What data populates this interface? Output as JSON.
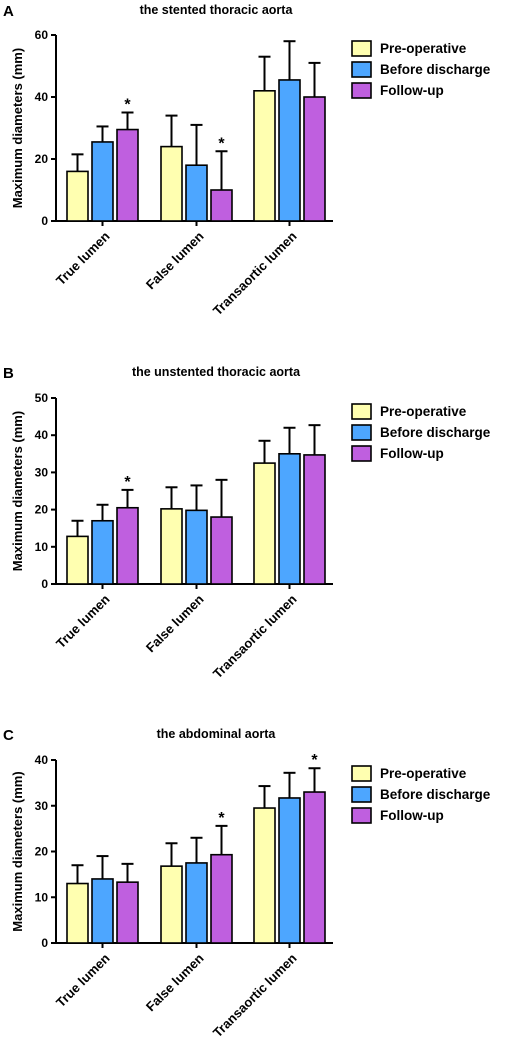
{
  "colors": {
    "pre_operative": "#ffffb0",
    "before_discharge": "#4da6ff",
    "follow_up": "#bf5fdf",
    "stroke": "#000000"
  },
  "chart_data": [
    {
      "panel": "A",
      "type": "bar",
      "title": "the stented thoracic aorta",
      "xlabel": "",
      "ylabel": "Maximum diameters (mm)",
      "ylim": [
        0,
        60
      ],
      "yticks": [
        0,
        20,
        40,
        60
      ],
      "grid": false,
      "legend_position": "top-right",
      "categories": [
        "True lumen",
        "False lumen",
        "Transaortic lumen"
      ],
      "series": [
        {
          "name": "Pre-operative",
          "color_key": "pre_operative",
          "values": [
            16,
            24,
            42
          ],
          "errors": [
            5.5,
            10,
            11
          ],
          "significant": [
            false,
            false,
            false
          ]
        },
        {
          "name": "Before discharge",
          "color_key": "before_discharge",
          "values": [
            25.5,
            18,
            45.5
          ],
          "errors": [
            5,
            13,
            12.5
          ],
          "significant": [
            false,
            false,
            false
          ]
        },
        {
          "name": "Follow-up",
          "color_key": "follow_up",
          "values": [
            29.5,
            10,
            40
          ],
          "errors": [
            5.5,
            12.5,
            11
          ],
          "significant": [
            true,
            true,
            false
          ]
        }
      ],
      "annotation": "*"
    },
    {
      "panel": "B",
      "type": "bar",
      "title": "the unstented thoracic aorta",
      "xlabel": "",
      "ylabel": "Maximum diameters (mm)",
      "ylim": [
        0,
        50
      ],
      "yticks": [
        0,
        10,
        20,
        30,
        40,
        50
      ],
      "grid": false,
      "legend_position": "top-right",
      "categories": [
        "True lumen",
        "False lumen",
        "Transaortic lumen"
      ],
      "series": [
        {
          "name": "Pre-operative",
          "color_key": "pre_operative",
          "values": [
            12.8,
            20.2,
            32.5
          ],
          "errors": [
            4.2,
            5.8,
            6
          ],
          "significant": [
            false,
            false,
            false
          ]
        },
        {
          "name": "Before discharge",
          "color_key": "before_discharge",
          "values": [
            17,
            19.8,
            35
          ],
          "errors": [
            4.3,
            6.7,
            7
          ],
          "significant": [
            false,
            false,
            false
          ]
        },
        {
          "name": "Follow-up",
          "color_key": "follow_up",
          "values": [
            20.5,
            18,
            34.7
          ],
          "errors": [
            4.8,
            10,
            8
          ],
          "significant": [
            true,
            false,
            false
          ]
        }
      ],
      "annotation": "*"
    },
    {
      "panel": "C",
      "type": "bar",
      "title": "the abdominal aorta",
      "xlabel": "",
      "ylabel": "Maximum diameters (mm)",
      "ylim": [
        0,
        40
      ],
      "yticks": [
        0,
        10,
        20,
        30,
        40
      ],
      "grid": false,
      "legend_position": "top-right",
      "categories": [
        "True lumen",
        "False lumen",
        "Transaortic lumen"
      ],
      "series": [
        {
          "name": "Pre-operative",
          "color_key": "pre_operative",
          "values": [
            13,
            16.8,
            29.5
          ],
          "errors": [
            4,
            5,
            4.8
          ],
          "significant": [
            false,
            false,
            false
          ]
        },
        {
          "name": "Before discharge",
          "color_key": "before_discharge",
          "values": [
            14,
            17.5,
            31.7
          ],
          "errors": [
            5,
            5.5,
            5.5
          ],
          "significant": [
            false,
            false,
            false
          ]
        },
        {
          "name": "Follow-up",
          "color_key": "follow_up",
          "values": [
            13.3,
            19.3,
            33
          ],
          "errors": [
            4,
            6.3,
            5.2
          ],
          "significant": [
            false,
            true,
            true
          ]
        }
      ],
      "annotation": "*"
    }
  ]
}
